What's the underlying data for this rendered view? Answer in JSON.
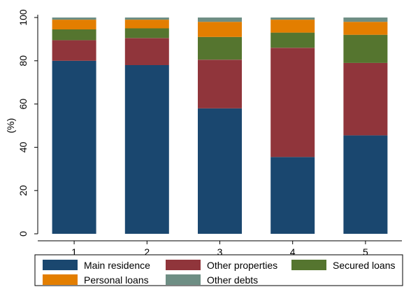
{
  "chart_data": {
    "type": "bar",
    "stacked": true,
    "categories": [
      "1",
      "2",
      "3",
      "4",
      "5"
    ],
    "ylabel": "(%)",
    "xlabel": "",
    "ylim": [
      0,
      100
    ],
    "yticks": [
      "0",
      "20",
      "40",
      "60",
      "80",
      "100"
    ],
    "grid": false,
    "legend_position": "bottom",
    "series": [
      {
        "name": "Main residence",
        "color": "#1a476f",
        "values": [
          80,
          78,
          58,
          35.5,
          45.5
        ]
      },
      {
        "name": "Other properties",
        "color": "#90353b",
        "values": [
          9.5,
          12.5,
          22.5,
          50.5,
          33.5
        ]
      },
      {
        "name": "Secured loans",
        "color": "#55752f",
        "values": [
          5,
          4.5,
          10.5,
          7,
          13
        ]
      },
      {
        "name": "Personal loans",
        "color": "#e37e00",
        "values": [
          4.5,
          4,
          7,
          6,
          6
        ]
      },
      {
        "name": "Other debts",
        "color": "#6e8e84",
        "values": [
          1,
          1,
          2,
          1,
          2
        ]
      }
    ]
  }
}
